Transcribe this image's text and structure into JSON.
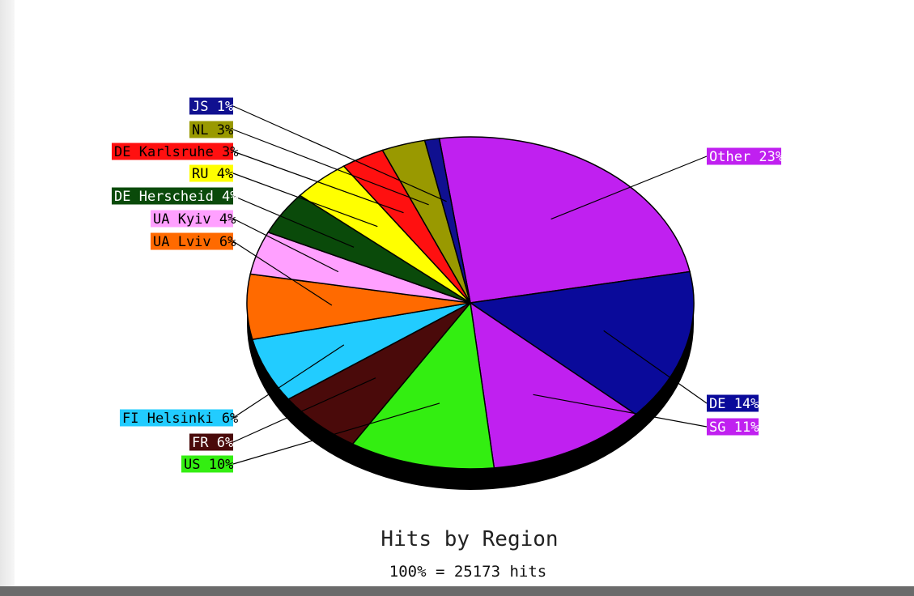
{
  "chart_data": {
    "type": "pie",
    "title": "Hits by Region",
    "subtitle": "100% = 25173 hits",
    "slices": [
      {
        "label": "Other",
        "percent": 23,
        "color": "#c020f0",
        "text_color": "#ffffff",
        "side": "right"
      },
      {
        "label": "DE",
        "percent": 14,
        "color": "#0a0a9a",
        "text_color": "#ffffff",
        "side": "right"
      },
      {
        "label": "SG",
        "percent": 11,
        "color": "#c020f0",
        "text_color": "#ffffff",
        "side": "right"
      },
      {
        "label": "US",
        "percent": 10,
        "color": "#33ee11",
        "text_color": "#000000",
        "side": "left"
      },
      {
        "label": "FR",
        "percent": 6,
        "color": "#4a0a0a",
        "text_color": "#ffffff",
        "side": "left"
      },
      {
        "label": "FI Helsinki",
        "percent": 6,
        "color": "#22ccff",
        "text_color": "#000000",
        "side": "left"
      },
      {
        "label": "UA Lviv",
        "percent": 6,
        "color": "#ff6a00",
        "text_color": "#000000",
        "side": "left"
      },
      {
        "label": "UA Kyiv",
        "percent": 4,
        "color": "#ffa0ff",
        "text_color": "#000000",
        "side": "left"
      },
      {
        "label": "DE Herscheid",
        "percent": 4,
        "color": "#0a4a0a",
        "text_color": "#ffffff",
        "side": "left"
      },
      {
        "label": "RU",
        "percent": 4,
        "color": "#ffff00",
        "text_color": "#000000",
        "side": "left"
      },
      {
        "label": "DE Karlsruhe",
        "percent": 3,
        "color": "#ff1010",
        "text_color": "#000000",
        "side": "left"
      },
      {
        "label": "NL",
        "percent": 3,
        "color": "#999900",
        "text_color": "#000000",
        "side": "left"
      },
      {
        "label": "JS",
        "percent": 1,
        "color": "#101090",
        "text_color": "#ffffff",
        "side": "left"
      }
    ]
  }
}
